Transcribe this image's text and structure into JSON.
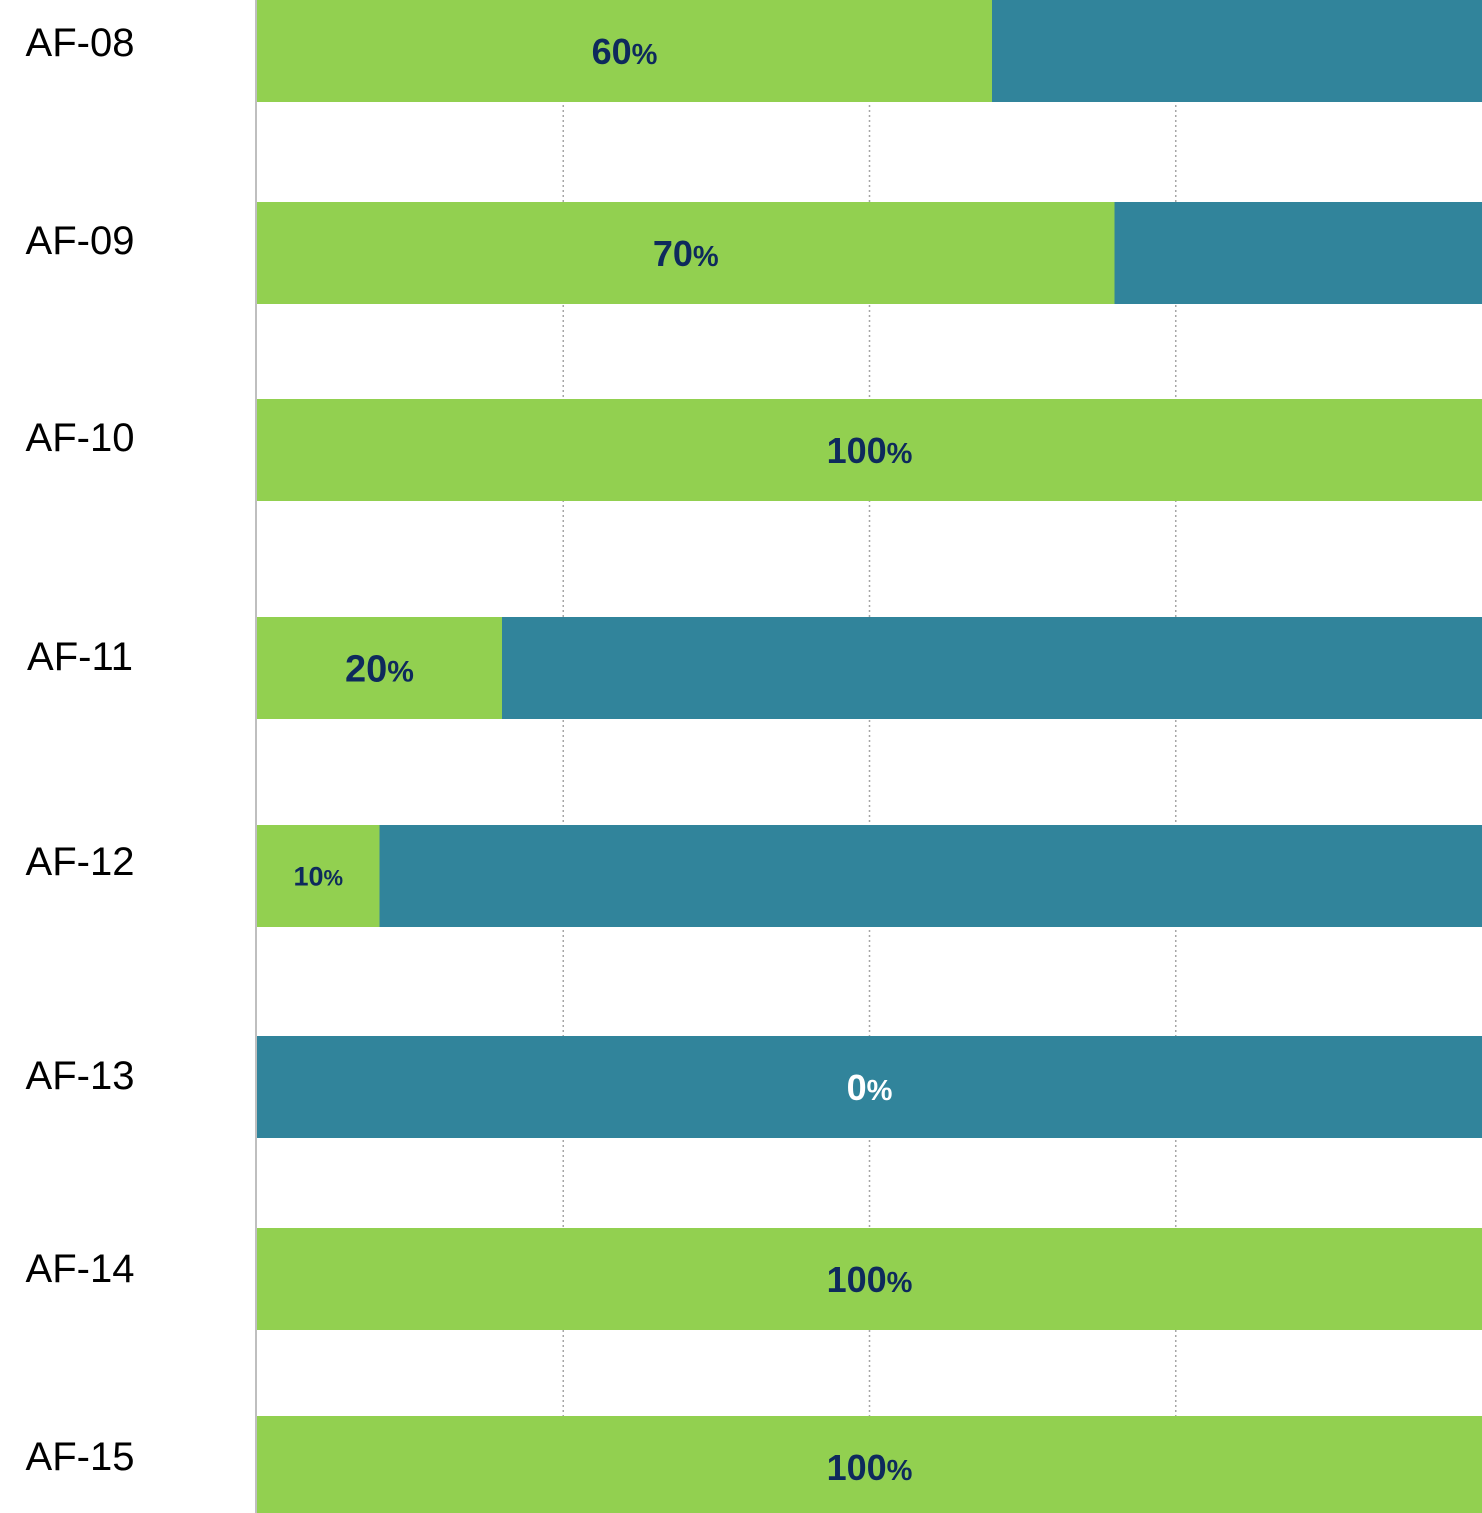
{
  "chart_data": {
    "type": "bar",
    "orientation": "horizontal",
    "stacked": true,
    "categories": [
      "AF-08",
      "AF-09",
      "AF-10",
      "AF-11",
      "AF-12",
      "AF-13",
      "AF-14",
      "AF-15"
    ],
    "series": [
      {
        "values": [
          60,
          70,
          100,
          20,
          10,
          0,
          100,
          100
        ],
        "color": "#92d050"
      },
      {
        "values": [
          40,
          30,
          0,
          80,
          90,
          100,
          0,
          0
        ],
        "color": "#31849b"
      }
    ],
    "data_labels": [
      "60%",
      "70%",
      "100%",
      "20%",
      "10%",
      "0%",
      "100%",
      "100%"
    ],
    "xlim": [
      0,
      100
    ],
    "grid": "vertical dotted",
    "title": "",
    "xlabel": "",
    "ylabel": "",
    "colors": {
      "complete": "#92d050",
      "remaining": "#31849b",
      "label_dark": "#0e2a5c",
      "label_light": "#ffffff",
      "axis": "#bfbfbf",
      "grid": "#a6a6a6"
    }
  }
}
